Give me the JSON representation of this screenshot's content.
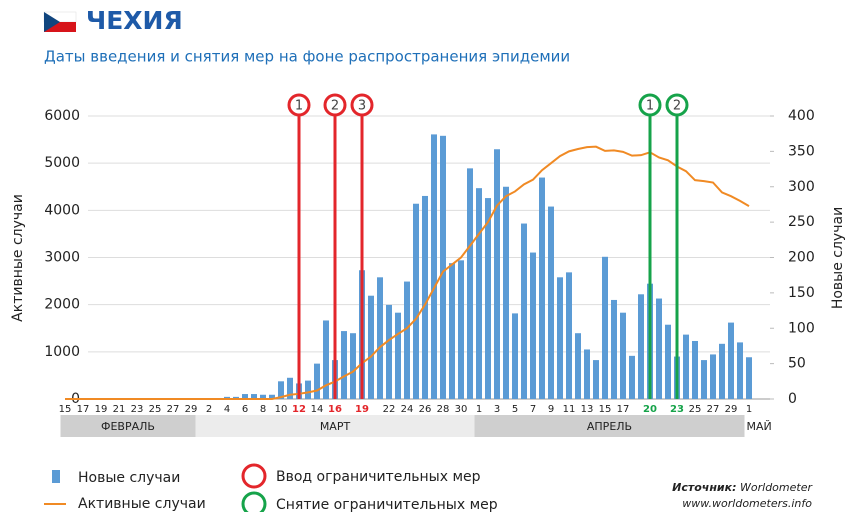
{
  "chart_data": {
    "type": "bar",
    "title": "ЧЕХИЯ",
    "subtitle": "Даты введения и снятия мер на фоне распространения эпидемии",
    "ylabel": "Активные случаи",
    "y2label": "Новые случаи",
    "grid": true,
    "categories": [
      "15",
      null,
      "17",
      null,
      "19",
      null,
      "21",
      null,
      "23",
      null,
      "25",
      null,
      "27",
      null,
      "29",
      null,
      "2",
      null,
      "4",
      null,
      "6",
      null,
      "8",
      null,
      "10",
      null,
      "12",
      null,
      "14",
      null,
      "16",
      null,
      null,
      "19",
      null,
      null,
      "22",
      null,
      "24",
      null,
      "26",
      null,
      "28",
      null,
      "30",
      null,
      "1",
      null,
      "3",
      null,
      "5",
      null,
      "7",
      null,
      "9",
      null,
      "11",
      null,
      "13",
      null,
      "15",
      null,
      "17",
      null,
      null,
      "20",
      null,
      null,
      "23",
      null,
      "25",
      null,
      "27",
      null,
      "29",
      null,
      "1"
    ],
    "months": [
      {
        "name": "ФЕВРАЛЬ",
        "days": 15,
        "shade": "#cfcfcf"
      },
      {
        "name": "МАРТ",
        "days": 31,
        "shade": "#ececec"
      },
      {
        "name": "АПРЕЛЬ",
        "days": 30,
        "shade": "#cfcfcf"
      },
      {
        "name": "МАЙ",
        "days": 1,
        "shade": "#ffffff"
      }
    ],
    "series": [
      {
        "name": "Новые случаи",
        "color": "#5b9bd5",
        "axis": "y2",
        "values": [
          0,
          0,
          0,
          0,
          0,
          0,
          0,
          0,
          0,
          0,
          0,
          0,
          0,
          0,
          0,
          0,
          0,
          0,
          3,
          3,
          7,
          7,
          6,
          6,
          25,
          30,
          22,
          26,
          50,
          111,
          55,
          96,
          93,
          182,
          146,
          172,
          133,
          122,
          166,
          276,
          287,
          374,
          372,
          192,
          196,
          326,
          298,
          284,
          353,
          300,
          121,
          248,
          207,
          313,
          272,
          172,
          179,
          93,
          70,
          55,
          201,
          140,
          122,
          61,
          148,
          163,
          142,
          105,
          60,
          91,
          82,
          55,
          63,
          78,
          108,
          80,
          59
        ]
      },
      {
        "name": "Активные случаи",
        "color": "#f08a24",
        "type": "line",
        "values": [
          0,
          0,
          0,
          0,
          0,
          0,
          0,
          0,
          0,
          0,
          0,
          0,
          0,
          0,
          0,
          0,
          0,
          0,
          0,
          0,
          0,
          0,
          0,
          0,
          40,
          90,
          110,
          140,
          180,
          290,
          370,
          480,
          580,
          760,
          900,
          1100,
          1250,
          1380,
          1500,
          1700,
          2000,
          2350,
          2700,
          2850,
          3000,
          3250,
          3500,
          3750,
          4100,
          4300,
          4400,
          4550,
          4650,
          4850,
          5000,
          5150,
          5250,
          5300,
          5340,
          5350,
          5260,
          5270,
          5240,
          5160,
          5170,
          5230,
          5120,
          5060,
          4930,
          4830,
          4640,
          4620,
          4590,
          4380,
          4300,
          4200,
          4090
        ]
      }
    ],
    "ylim": [
      0,
      6000
    ],
    "yticks": [
      0,
      1000,
      2000,
      3000,
      4000,
      5000,
      6000
    ],
    "y2lim": [
      0,
      400
    ],
    "y2ticks": [
      0,
      50,
      100,
      150,
      200,
      250,
      300,
      350,
      400
    ],
    "events": [
      {
        "name": "Ввод ограничительных мер",
        "color": "#e3262b",
        "marks": [
          {
            "label": "1",
            "at": 26
          },
          {
            "label": "2",
            "at": 30
          },
          {
            "label": "3",
            "at": 33
          }
        ]
      },
      {
        "name": "Снятие ограничительных мер",
        "color": "#16a34a",
        "marks": [
          {
            "label": "1",
            "at": 65
          },
          {
            "label": "2",
            "at": 68
          }
        ]
      }
    ],
    "source": {
      "label": "Источник:",
      "name": "Worldometer",
      "url": "www.worldometers.info"
    }
  }
}
